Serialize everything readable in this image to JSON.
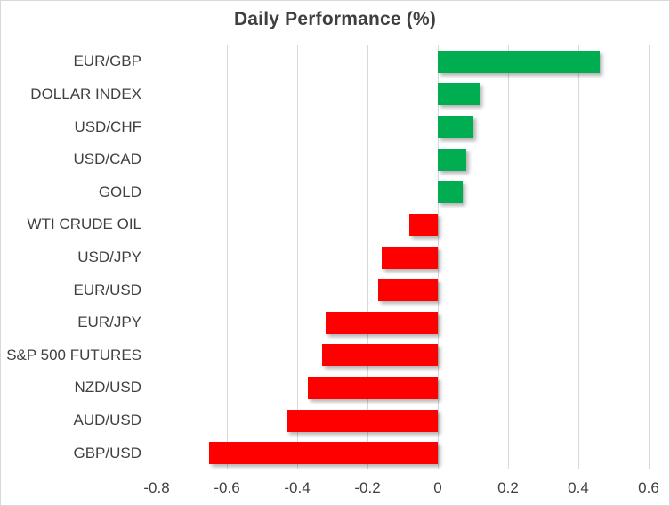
{
  "chart_data": {
    "type": "bar",
    "orientation": "horizontal",
    "title": "Daily Performance (%)",
    "categories": [
      "EUR/GBP",
      "DOLLAR INDEX",
      "USD/CHF",
      "USD/CAD",
      "GOLD",
      "WTI CRUDE OIL",
      "USD/JPY",
      "EUR/USD",
      "EUR/JPY",
      "S&P 500 FUTURES",
      "NZD/USD",
      "AUD/USD",
      "GBP/USD"
    ],
    "values": [
      0.46,
      0.12,
      0.1,
      0.08,
      0.07,
      -0.08,
      -0.16,
      -0.17,
      -0.32,
      -0.33,
      -0.37,
      -0.43,
      -0.65
    ],
    "xlim": [
      -0.8,
      0.6
    ],
    "xticks": [
      -0.8,
      -0.6,
      -0.4,
      -0.2,
      0,
      0.2,
      0.4,
      0.6
    ],
    "xtick_labels": [
      "-0.8",
      "-0.6",
      "-0.4",
      "-0.2",
      "0",
      "0.2",
      "0.4",
      "0.6"
    ],
    "grid": "vertical",
    "legend": "none",
    "positive_color": "#00AD50",
    "negative_color": "#FF0000",
    "gridline_color": "#D9D9D9",
    "text_color": "#404040",
    "title_color": "#3F3F3F",
    "border_color": "#D9D9D9"
  }
}
